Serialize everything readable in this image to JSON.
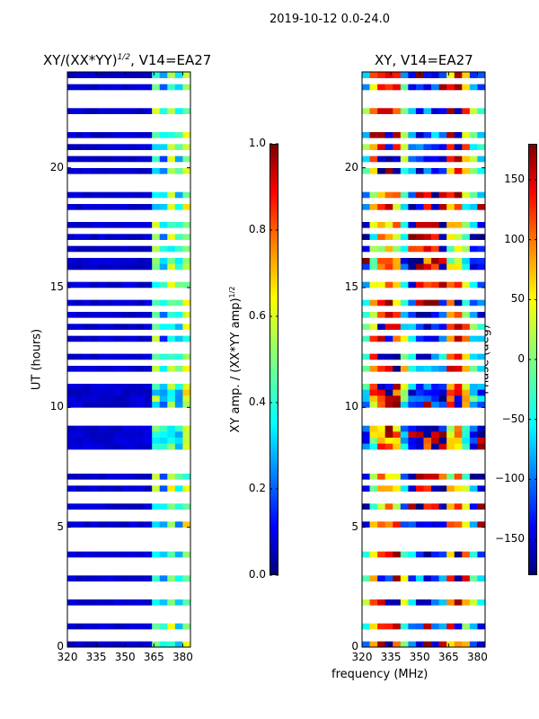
{
  "suptitle": "2019-10-12 0.0-24.0",
  "xlabel": "frequency (MHz)",
  "chart_data": [
    {
      "type": "heatmap",
      "title": "XY/(XX*YY)",
      "title_sup": "1/2",
      "title_suffix": ", V14=EA27",
      "ylabel": "UT (hours)",
      "xlim": [
        320,
        384
      ],
      "ylim": [
        0,
        24
      ],
      "xticks": [
        320,
        335,
        350,
        365,
        380
      ],
      "yticks": [
        0,
        5,
        10,
        15,
        20
      ],
      "freq_bins": [
        320,
        324,
        328,
        332,
        336,
        340,
        344,
        348,
        352,
        356,
        360,
        364,
        368,
        372,
        376,
        380
      ],
      "column_profile": [
        0.05,
        0.05,
        0.05,
        0.05,
        0.05,
        0.05,
        0.05,
        0.05,
        0.05,
        0.05,
        0.06,
        0.45,
        0.3,
        0.5,
        0.35,
        0.55
      ],
      "colorbar": {
        "label": "XY amp. / (XX*YY amp)",
        "label_sup": "1/2",
        "range": [
          0,
          1
        ],
        "ticks": [
          "0.0",
          "0.2",
          "0.4",
          "0.6",
          "0.8",
          "1.0"
        ]
      }
    },
    {
      "type": "heatmap",
      "title": "XY, V14=EA27",
      "xlim": [
        320,
        384
      ],
      "ylim": [
        0,
        24
      ],
      "xticks": [
        320,
        335,
        350,
        365,
        380
      ],
      "yticks": [
        0,
        5,
        10,
        15,
        20
      ],
      "freq_bins": [
        320,
        324,
        328,
        332,
        336,
        340,
        344,
        348,
        352,
        356,
        360,
        364,
        368,
        372,
        376,
        380
      ],
      "column_profile": [
        -90,
        60,
        120,
        140,
        100,
        -40,
        -140,
        -160,
        -170,
        -160,
        -150,
        80,
        140,
        30,
        -60,
        -120
      ],
      "colorbar": {
        "label": "Phase (deg)",
        "range": [
          -180,
          180
        ],
        "ticks": [
          "-150",
          "-100",
          "-50",
          "0",
          "50",
          "100",
          "150"
        ]
      }
    }
  ],
  "flagged_hours": [
    0.3,
    0.5,
    1.0,
    1.3,
    1.6,
    2.0,
    2.3,
    2.6,
    2.9,
    3.3,
    3.6,
    3.9,
    4.1,
    4.3,
    4.5,
    4.8,
    5.2,
    5.5,
    5.9,
    6.3,
    6.8,
    7.2,
    7.5,
    7.8,
    8.1,
    9.3,
    9.5,
    9.8,
    11.0,
    11.3,
    11.7,
    12.2,
    12.6,
    13.1,
    13.4,
    14.0,
    14.5,
    14.8,
    15.3,
    15.6,
    16.2,
    16.8,
    17.3,
    17.8,
    18.1,
    18.5,
    18.9,
    19.3,
    19.6,
    20.1,
    20.5,
    20.9,
    21.4,
    21.7,
    22.1,
    22.5,
    22.8,
    23.1,
    23.4
  ]
}
